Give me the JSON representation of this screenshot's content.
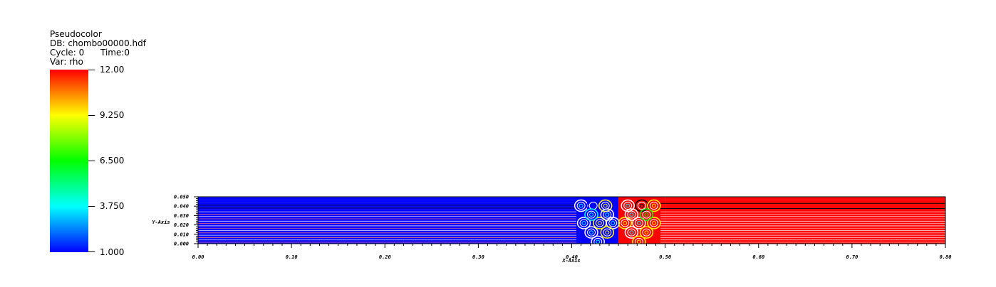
{
  "legend": {
    "plot_type": "Pseudocolor",
    "db": "DB: chombo00000.hdf",
    "cycle": "Cycle: 0",
    "time": "Time:0",
    "var": "Var: rho",
    "colorbar_labels": [
      "12.00",
      "9.250",
      "6.500",
      "3.750",
      "1.000"
    ],
    "colormap": [
      "#ff0000",
      "#ff8000",
      "#ffff00",
      "#80ff00",
      "#00ff00",
      "#00ff80",
      "#00ffff",
      "#0080ff",
      "#0000ff"
    ]
  },
  "chart_data": {
    "type": "heatmap",
    "variable": "rho",
    "xlabel": "X-Axis",
    "ylabel": "Y-Axis",
    "xlim": [
      0.0,
      0.8
    ],
    "ylim": [
      0.0,
      0.05
    ],
    "x_ticks": [
      "0.00",
      "0.10",
      "0.20",
      "0.30",
      "0.40",
      "0.50",
      "0.60",
      "0.70",
      "0.80"
    ],
    "y_ticks": [
      "0.000",
      "0.010",
      "0.020",
      "0.030",
      "0.040",
      "0.050"
    ],
    "value_range": [
      1.0,
      12.0
    ],
    "regions": [
      {
        "x_range": [
          0.0,
          0.4
        ],
        "rho": 1.0,
        "color": "#0000ff"
      },
      {
        "x_range": [
          0.4,
          0.45
        ],
        "rho": 1.0,
        "color": "#0000ff",
        "perturbed": true
      },
      {
        "x_range": [
          0.45,
          0.5
        ],
        "rho": 12.0,
        "color": "#ff0000",
        "perturbed": true
      },
      {
        "x_range": [
          0.5,
          0.8
        ],
        "rho": 12.0,
        "color": "#ff0000"
      }
    ]
  }
}
